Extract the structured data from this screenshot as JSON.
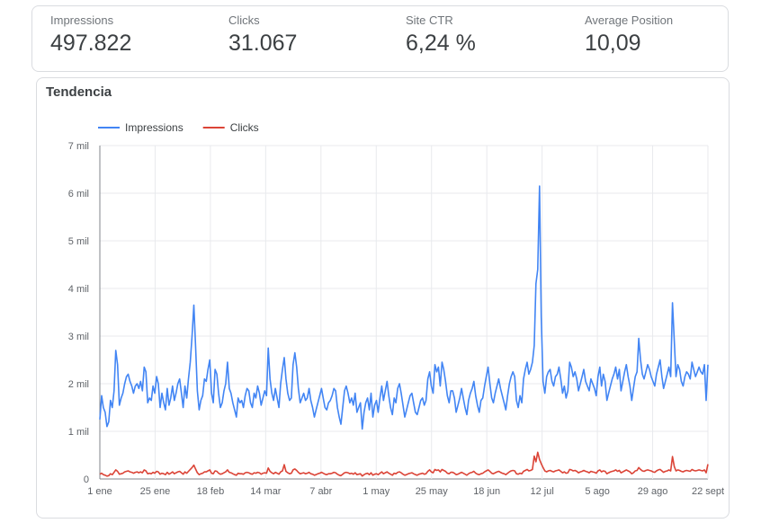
{
  "kpis": [
    {
      "label": "Impressions",
      "value": "497.822"
    },
    {
      "label": "Clicks",
      "value": "31.067"
    },
    {
      "label": "Site CTR",
      "value": "6,24 %"
    },
    {
      "label": "Average Position",
      "value": "10,09"
    }
  ],
  "chart_card": {
    "title": "Tendencia"
  },
  "colors": {
    "impressions": "#4285f4",
    "clicks": "#db4437",
    "grid": "#e8eaed",
    "axis": "#80868b"
  },
  "chart_data": {
    "type": "line",
    "title": "Tendencia",
    "xlabel": "",
    "ylabel": "",
    "x_tick_labels": [
      "1 ene",
      "25 ene",
      "18 feb",
      "14 mar",
      "7 abr",
      "1 may",
      "25 may",
      "18 jun",
      "12 jul",
      "5 ago",
      "29 ago",
      "22 sept"
    ],
    "y_tick_labels": [
      "0",
      "1 mil",
      "2 mil",
      "3 mil",
      "4 mil",
      "5 mil",
      "6 mil",
      "7 mil"
    ],
    "ylim": [
      0,
      7000
    ],
    "day_range": [
      0,
      264
    ],
    "grid": true,
    "legend": "top-left",
    "series": [
      {
        "name": "Impressions",
        "color": "#4285f4",
        "values": [
          1250,
          1750,
          1500,
          1400,
          1100,
          1200,
          1650,
          1500,
          1850,
          2700,
          2400,
          1550,
          1700,
          1800,
          2000,
          2150,
          2200,
          2050,
          1950,
          1800,
          1950,
          2000,
          1900,
          2050,
          1850,
          2350,
          2250,
          1600,
          1700,
          1650,
          1950,
          1800,
          2150,
          2000,
          1500,
          1800,
          1600,
          1450,
          1900,
          1550,
          1700,
          1950,
          1650,
          1800,
          2000,
          2100,
          1800,
          1500,
          1950,
          1700,
          2100,
          2450,
          3000,
          3650,
          2800,
          1850,
          1450,
          1650,
          1750,
          2100,
          2050,
          2300,
          2500,
          1800,
          1600,
          2300,
          2200,
          1800,
          1500,
          1600,
          1850,
          2000,
          2450,
          1900,
          1800,
          1600,
          1450,
          1300,
          1700,
          1600,
          1650,
          1500,
          1750,
          1900,
          1850,
          1600,
          1500,
          1800,
          1700,
          1950,
          1800,
          1550,
          1700,
          1850,
          1750,
          2750,
          2100,
          1800,
          1650,
          1900,
          1700,
          1500,
          2000,
          2300,
          2550,
          2100,
          1800,
          1650,
          1700,
          2400,
          2650,
          2350,
          1900,
          1600,
          1700,
          1800,
          1650,
          1700,
          1900,
          1650,
          1500,
          1300,
          1450,
          1600,
          1750,
          1900,
          1700,
          1500,
          1450,
          1600,
          1650,
          1750,
          1900,
          1850,
          1500,
          1300,
          1150,
          1500,
          1850,
          1950,
          1800,
          1600,
          1700,
          1550,
          1800,
          1400,
          1500,
          1600,
          1050,
          1400,
          1600,
          1700,
          1450,
          1800,
          1300,
          1550,
          1650,
          1400,
          1700,
          1950,
          1650,
          1850,
          2050,
          1750,
          1500,
          1350,
          1700,
          1600,
          1900,
          2000,
          1800,
          1550,
          1300,
          1450,
          1600,
          1750,
          1800,
          1600,
          1400,
          1350,
          1500,
          1650,
          1700,
          1550,
          1650,
          2100,
          2250,
          1950,
          1800,
          2400,
          2250,
          2350,
          1950,
          2450,
          2300,
          2050,
          1750,
          1600,
          1850,
          1850,
          1700,
          1400,
          1550,
          1700,
          1900,
          1700,
          1500,
          1350,
          1650,
          1800,
          1900,
          2050,
          1750,
          1550,
          1400,
          1650,
          1700,
          1950,
          2150,
          2350,
          2000,
          1700,
          1600,
          1800,
          1950,
          2100,
          1900,
          1750,
          1600,
          1450,
          1750,
          2000,
          2150,
          2250,
          2150,
          1650,
          1500,
          1750,
          1600,
          2100,
          2300,
          2450,
          2200,
          2300,
          2450,
          2800,
          4100,
          4400,
          6150,
          3400,
          2050,
          1800,
          2150,
          2250,
          2300,
          2050,
          1950,
          2150,
          2200,
          2350,
          2100,
          1800,
          1950,
          1700,
          1850,
          2450,
          2350,
          2150,
          2250,
          2100,
          1850,
          2000,
          2150,
          2300,
          2050,
          1950,
          1850,
          2100,
          2000,
          1900,
          1750,
          2150,
          2350,
          1950,
          2200,
          2050,
          1650,
          1800,
          1950,
          2100,
          2200,
          2350,
          2100,
          2300,
          1850,
          2050,
          2250,
          2400,
          2150,
          1950,
          1650,
          1900,
          2150,
          2250,
          2950,
          2500,
          2200,
          2100,
          2250,
          2400,
          2300,
          2150,
          2050,
          1950,
          2200,
          2350,
          2500,
          2150,
          1900,
          2050,
          2200,
          2350,
          2150,
          3700,
          2900,
          2150,
          2400,
          2300,
          2050,
          1950,
          2150,
          2250,
          2200,
          2100,
          2450,
          2300,
          2150,
          2250,
          2350,
          2250,
          2200,
          2400,
          1650,
          2400
        ]
      },
      {
        "name": "Clicks",
        "color": "#db4437",
        "values": [
          100,
          120,
          90,
          80,
          60,
          70,
          110,
          90,
          140,
          190,
          160,
          100,
          110,
          120,
          150,
          160,
          170,
          150,
          140,
          120,
          140,
          150,
          130,
          150,
          130,
          190,
          170,
          110,
          120,
          110,
          140,
          120,
          160,
          150,
          100,
          120,
          110,
          90,
          140,
          100,
          120,
          150,
          110,
          130,
          150,
          160,
          130,
          100,
          150,
          120,
          160,
          200,
          240,
          290,
          210,
          130,
          90,
          110,
          120,
          150,
          150,
          170,
          190,
          120,
          110,
          170,
          160,
          120,
          100,
          110,
          130,
          150,
          190,
          140,
          130,
          110,
          90,
          80,
          120,
          110,
          110,
          100,
          130,
          140,
          130,
          110,
          100,
          130,
          120,
          140,
          130,
          100,
          120,
          130,
          120,
          230,
          160,
          130,
          110,
          140,
          120,
          100,
          150,
          170,
          300,
          160,
          130,
          110,
          120,
          190,
          210,
          180,
          140,
          110,
          120,
          130,
          110,
          120,
          140,
          110,
          100,
          80,
          90,
          110,
          120,
          140,
          120,
          100,
          90,
          110,
          110,
          120,
          140,
          130,
          100,
          80,
          70,
          100,
          130,
          140,
          130,
          110,
          120,
          100,
          130,
          90,
          100,
          110,
          60,
          90,
          110,
          120,
          90,
          130,
          80,
          100,
          110,
          90,
          120,
          150,
          110,
          130,
          150,
          120,
          100,
          80,
          120,
          110,
          140,
          150,
          130,
          100,
          80,
          90,
          110,
          120,
          130,
          110,
          90,
          80,
          100,
          110,
          120,
          100,
          110,
          160,
          190,
          150,
          130,
          200,
          180,
          190,
          150,
          200,
          180,
          160,
          120,
          110,
          140,
          140,
          120,
          90,
          100,
          120,
          140,
          120,
          100,
          80,
          110,
          130,
          140,
          160,
          120,
          100,
          90,
          110,
          120,
          150,
          170,
          190,
          160,
          120,
          110,
          130,
          150,
          160,
          140,
          120,
          110,
          90,
          120,
          150,
          170,
          180,
          170,
          110,
          100,
          120,
          110,
          160,
          180,
          200,
          170,
          180,
          200,
          480,
          360,
          560,
          410,
          320,
          240,
          170,
          150,
          170,
          180,
          160,
          150,
          170,
          180,
          190,
          160,
          130,
          150,
          120,
          130,
          200,
          190,
          170,
          180,
          160,
          130,
          150,
          160,
          180,
          160,
          150,
          130,
          160,
          150,
          140,
          120,
          170,
          190,
          150,
          170,
          160,
          110,
          130,
          150,
          160,
          170,
          190,
          160,
          180,
          130,
          150,
          170,
          190,
          170,
          150,
          110,
          130,
          170,
          180,
          240,
          200,
          170,
          160,
          180,
          190,
          180,
          170,
          150,
          140,
          170,
          190,
          200,
          170,
          140,
          160,
          170,
          190,
          170,
          470,
          260,
          170,
          190,
          180,
          160,
          150,
          170,
          180,
          170,
          160,
          200,
          180,
          170,
          180,
          190,
          180,
          170,
          190,
          130,
          310
        ]
      }
    ]
  }
}
